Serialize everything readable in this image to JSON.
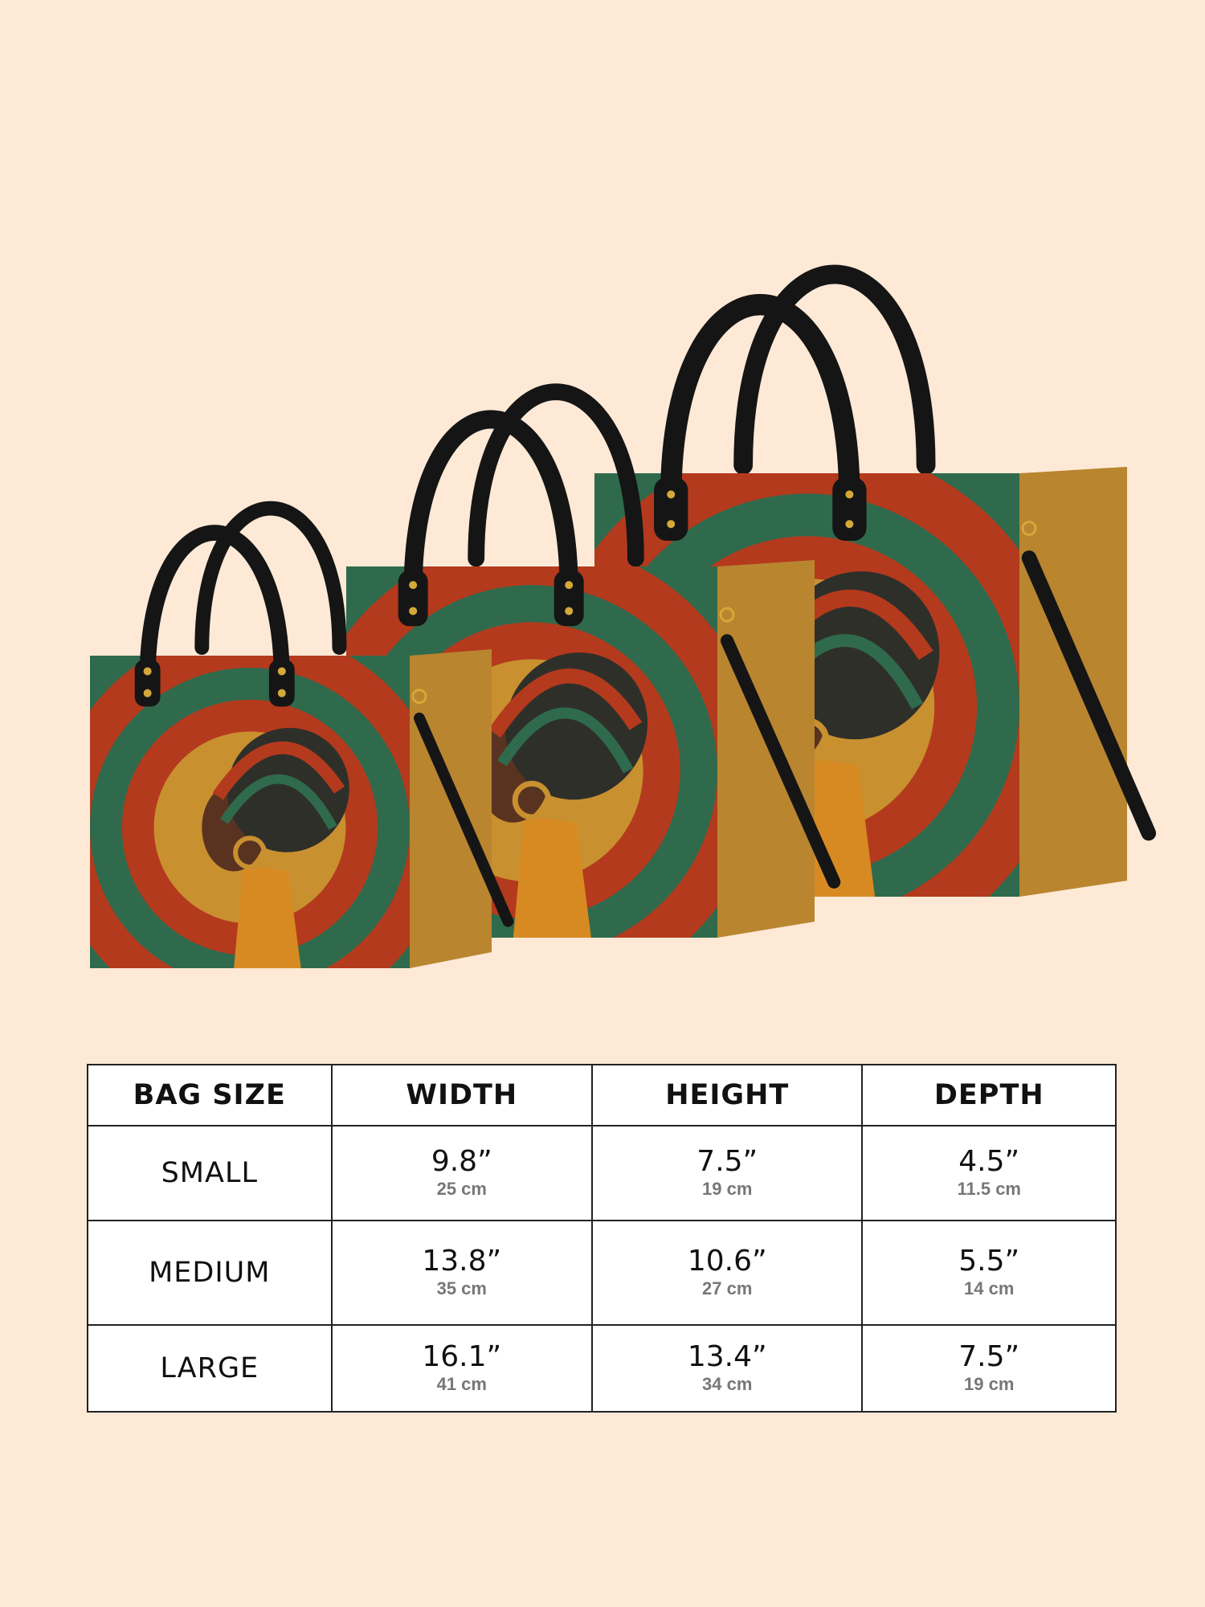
{
  "colors": {
    "background": "#fde9d6",
    "green": "#2f6a4c",
    "red": "#b43a1d",
    "gold": "#c99030",
    "tan": "#b9852f",
    "handle": "#151515"
  },
  "product_image": {
    "bags": [
      "large",
      "medium",
      "small"
    ]
  },
  "size_table": {
    "headers": [
      "BAG SIZE",
      "WIDTH",
      "HEIGHT",
      "DEPTH"
    ],
    "rows": [
      {
        "size": "SMALL",
        "width": {
          "in": "9.8”",
          "cm": "25 cm"
        },
        "height": {
          "in": "7.5”",
          "cm": "19 cm"
        },
        "depth": {
          "in": "4.5”",
          "cm": "11.5 cm"
        }
      },
      {
        "size": "MEDIUM",
        "width": {
          "in": "13.8”",
          "cm": "35 cm"
        },
        "height": {
          "in": "10.6”",
          "cm": "27 cm"
        },
        "depth": {
          "in": "5.5”",
          "cm": "14 cm"
        }
      },
      {
        "size": "LARGE",
        "width": {
          "in": "16.1”",
          "cm": "41 cm"
        },
        "height": {
          "in": "13.4”",
          "cm": "34 cm"
        },
        "depth": {
          "in": "7.5”",
          "cm": "19 cm"
        }
      }
    ]
  }
}
